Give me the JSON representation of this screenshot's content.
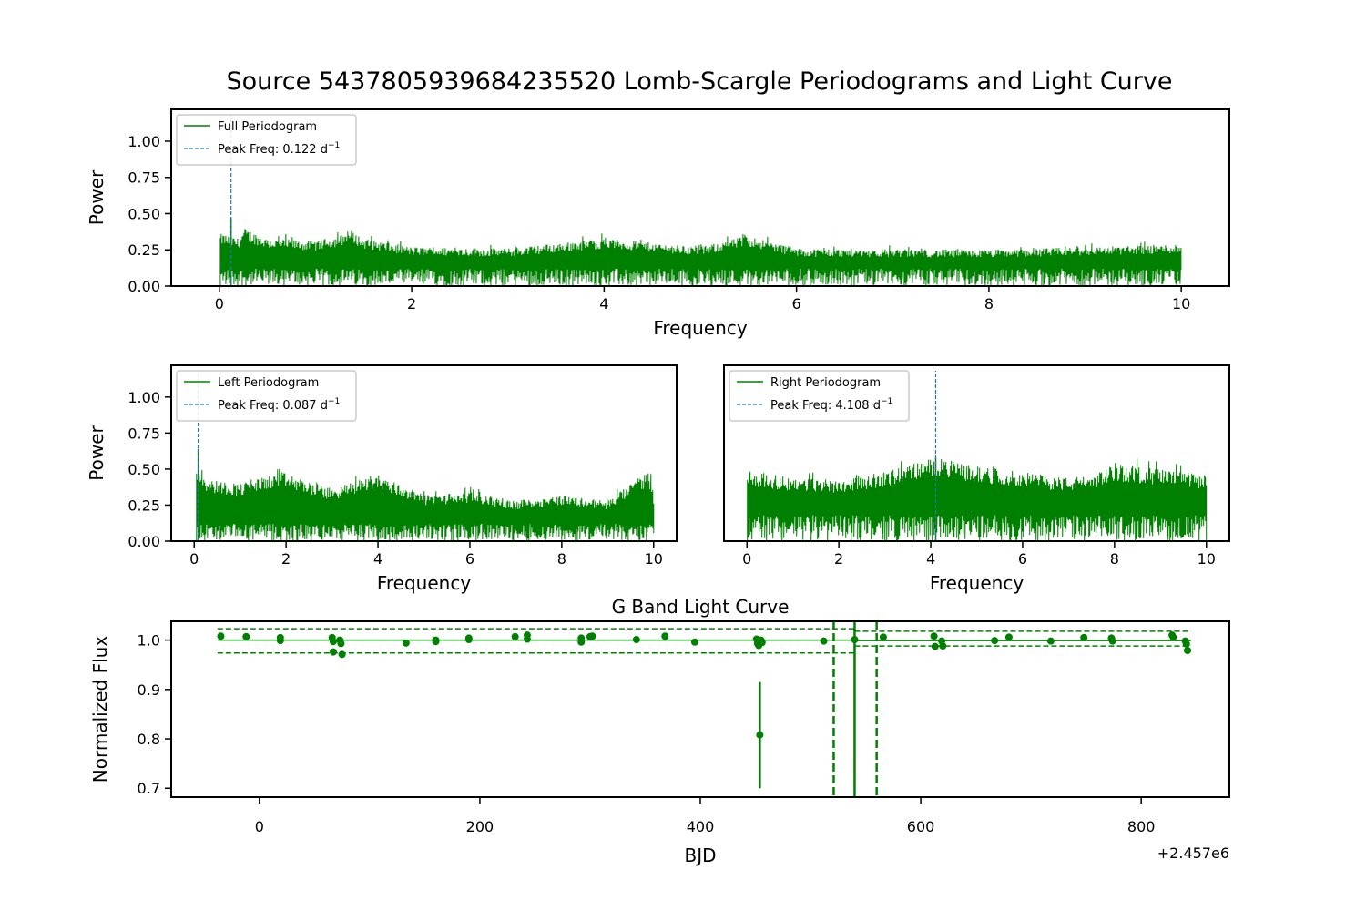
{
  "suptitle": "Source 5437805939684235520 Lomb-Scargle Periodograms and Light Curve",
  "colors": {
    "series": "#008000",
    "peak": "#1f77b4",
    "axes": "#000000"
  },
  "chart_data": [
    {
      "id": "full",
      "type": "line",
      "xlabel": "Frequency",
      "ylabel": "Power",
      "xlim": [
        -0.5,
        10.5
      ],
      "ylim": [
        0,
        1.22
      ],
      "xticks": [
        0,
        2,
        4,
        6,
        8,
        10
      ],
      "yticks": [
        "0.00",
        "0.25",
        "0.50",
        "0.75",
        "1.00"
      ],
      "legend": {
        "placement": "upper-left",
        "entries": [
          "Full Periodogram",
          "Peak Freq: 0.122 d"
        ],
        "superscript": "−1"
      },
      "freq_range": [
        0.01,
        10.0
      ],
      "peak_freq": 0.122,
      "peak_power": 0.47,
      "envelope": [
        {
          "x": 0.05,
          "y": 0.36
        },
        {
          "x": 0.2,
          "y": 0.33
        },
        {
          "x": 0.26,
          "y": 0.4
        },
        {
          "x": 0.5,
          "y": 0.33
        },
        {
          "x": 1.0,
          "y": 0.31
        },
        {
          "x": 1.3,
          "y": 0.36
        },
        {
          "x": 1.33,
          "y": 0.4
        },
        {
          "x": 1.5,
          "y": 0.33
        },
        {
          "x": 2.0,
          "y": 0.27
        },
        {
          "x": 3.0,
          "y": 0.26
        },
        {
          "x": 4.0,
          "y": 0.33
        },
        {
          "x": 5.0,
          "y": 0.27
        },
        {
          "x": 5.5,
          "y": 0.35
        },
        {
          "x": 6.0,
          "y": 0.26
        },
        {
          "x": 8.0,
          "y": 0.25
        },
        {
          "x": 10.0,
          "y": 0.29
        }
      ],
      "floor": 0.12
    },
    {
      "id": "left",
      "type": "line",
      "xlabel": "Frequency",
      "ylabel": "Power",
      "xlim": [
        -0.5,
        10.5
      ],
      "ylim": [
        0,
        1.22
      ],
      "xticks": [
        0,
        2,
        4,
        6,
        8,
        10
      ],
      "yticks": [
        "0.00",
        "0.25",
        "0.50",
        "0.75",
        "1.00"
      ],
      "legend": {
        "placement": "upper-left",
        "entries": [
          "Left Periodogram",
          "Peak Freq: 0.087 d"
        ],
        "superscript": "−1"
      },
      "freq_range": [
        0.05,
        10.0
      ],
      "peak_freq": 0.087,
      "peak_power": 0.64,
      "envelope": [
        {
          "x": 0.05,
          "y": 0.53
        },
        {
          "x": 0.3,
          "y": 0.43
        },
        {
          "x": 1.0,
          "y": 0.4
        },
        {
          "x": 1.9,
          "y": 0.48
        },
        {
          "x": 3.0,
          "y": 0.36
        },
        {
          "x": 3.95,
          "y": 0.47
        },
        {
          "x": 5.0,
          "y": 0.32
        },
        {
          "x": 6.0,
          "y": 0.34
        },
        {
          "x": 7.0,
          "y": 0.28
        },
        {
          "x": 8.0,
          "y": 0.32
        },
        {
          "x": 9.0,
          "y": 0.28
        },
        {
          "x": 9.9,
          "y": 0.49
        },
        {
          "x": 10.0,
          "y": 0.33
        }
      ],
      "floor": 0.12
    },
    {
      "id": "right",
      "type": "line",
      "xlabel": "Frequency",
      "ylabel": "",
      "xlim": [
        -0.5,
        10.5
      ],
      "ylim": [
        0,
        1.22
      ],
      "xticks": [
        0,
        2,
        4,
        6,
        8,
        10
      ],
      "yticks": [],
      "legend": {
        "placement": "upper-left",
        "entries": [
          "Right Periodogram",
          "Peak Freq: 4.108 d"
        ],
        "superscript": "−1"
      },
      "freq_range": [
        0.01,
        10.0
      ],
      "peak_freq": 4.108,
      "peak_power": 0.58,
      "envelope": [
        {
          "x": 0.05,
          "y": 0.49
        },
        {
          "x": 1.0,
          "y": 0.44
        },
        {
          "x": 2.0,
          "y": 0.43
        },
        {
          "x": 3.0,
          "y": 0.48
        },
        {
          "x": 3.5,
          "y": 0.53
        },
        {
          "x": 4.1,
          "y": 0.58
        },
        {
          "x": 5.0,
          "y": 0.52
        },
        {
          "x": 6.0,
          "y": 0.48
        },
        {
          "x": 7.0,
          "y": 0.44
        },
        {
          "x": 7.5,
          "y": 0.46
        },
        {
          "x": 8.0,
          "y": 0.53
        },
        {
          "x": 9.0,
          "y": 0.5
        },
        {
          "x": 10.0,
          "y": 0.46
        }
      ],
      "floor": 0.18
    },
    {
      "id": "lightcurve",
      "type": "scatter",
      "title": "G Band Light Curve",
      "xlabel": "BJD",
      "ylabel": "Normalized Flux",
      "offset_text": "+2.457e6",
      "xlim": [
        -80,
        880
      ],
      "ylim": [
        0.682,
        1.038
      ],
      "xticks": [
        0,
        200,
        400,
        600,
        800
      ],
      "yticks": [
        "0.7",
        "0.8",
        "0.9",
        "1.0"
      ],
      "points": [
        {
          "x": -35,
          "y": 1.008
        },
        {
          "x": -12,
          "y": 1.007
        },
        {
          "x": 19,
          "y": 1.005
        },
        {
          "x": 19,
          "y": 0.999
        },
        {
          "x": 66,
          "y": 1.005
        },
        {
          "x": 67,
          "y": 0.997
        },
        {
          "x": 67,
          "y": 0.976
        },
        {
          "x": 73,
          "y": 1.0
        },
        {
          "x": 74,
          "y": 0.993
        },
        {
          "x": 75,
          "y": 0.971
        },
        {
          "x": 133,
          "y": 0.994
        },
        {
          "x": 160,
          "y": 1.0
        },
        {
          "x": 160,
          "y": 0.997
        },
        {
          "x": 190,
          "y": 1.004
        },
        {
          "x": 190,
          "y": 1.001
        },
        {
          "x": 232,
          "y": 1.007
        },
        {
          "x": 243,
          "y": 1.01
        },
        {
          "x": 243,
          "y": 1.002
        },
        {
          "x": 292,
          "y": 1.004
        },
        {
          "x": 292,
          "y": 0.996
        },
        {
          "x": 300,
          "y": 1.007
        },
        {
          "x": 302,
          "y": 1.008
        },
        {
          "x": 342,
          "y": 1.001
        },
        {
          "x": 368,
          "y": 1.008
        },
        {
          "x": 395,
          "y": 0.996
        },
        {
          "x": 451,
          "y": 1.002
        },
        {
          "x": 452,
          "y": 0.998
        },
        {
          "x": 452,
          "y": 0.993
        },
        {
          "x": 453,
          "y": 0.989
        },
        {
          "x": 454,
          "y": 0.808
        },
        {
          "x": 455,
          "y": 1.0
        },
        {
          "x": 456,
          "y": 0.995
        },
        {
          "x": 512,
          "y": 0.998
        },
        {
          "x": 540,
          "y": 1.001
        },
        {
          "x": 566,
          "y": 1.006
        },
        {
          "x": 612,
          "y": 1.008
        },
        {
          "x": 613,
          "y": 0.987
        },
        {
          "x": 619,
          "y": 0.998
        },
        {
          "x": 620,
          "y": 0.988
        },
        {
          "x": 667,
          "y": 0.999
        },
        {
          "x": 680,
          "y": 1.006
        },
        {
          "x": 718,
          "y": 0.998
        },
        {
          "x": 748,
          "y": 1.005
        },
        {
          "x": 773,
          "y": 1.004
        },
        {
          "x": 774,
          "y": 0.998
        },
        {
          "x": 828,
          "y": 1.01
        },
        {
          "x": 829,
          "y": 1.006
        },
        {
          "x": 840,
          "y": 0.998
        },
        {
          "x": 841,
          "y": 0.992
        },
        {
          "x": 842,
          "y": 0.979
        }
      ],
      "errorbar": {
        "x": 454,
        "ylow": 0.7,
        "yhigh": 0.915
      },
      "segments": [
        {
          "x0": -38,
          "x1": 540,
          "mean": 1.0,
          "upper": 1.023,
          "lower": 0.974
        },
        {
          "x0": 540,
          "x1": 845,
          "mean": 0.999,
          "upper": 1.018,
          "lower": 0.988
        }
      ],
      "vlines": [
        {
          "x": 540,
          "style": "solid"
        },
        {
          "x": 521,
          "style": "dashed"
        },
        {
          "x": 560,
          "style": "dashed"
        }
      ]
    }
  ]
}
